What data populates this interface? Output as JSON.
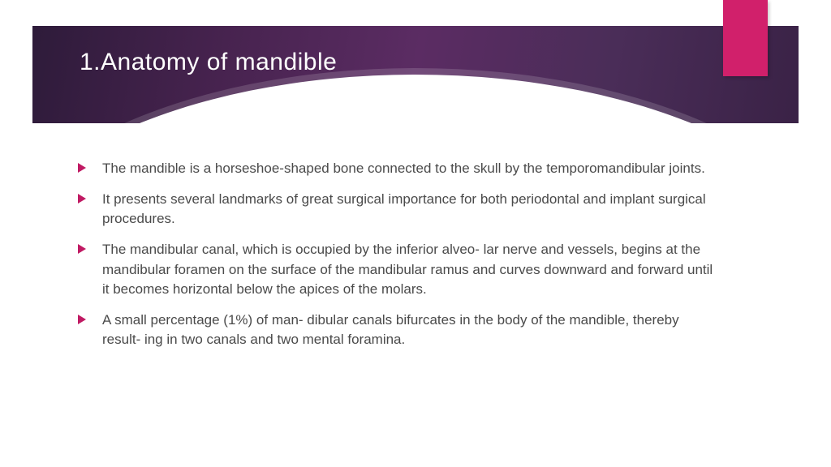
{
  "slide": {
    "title": "1.Anatomy of mandible",
    "title_color": "#ffffff",
    "title_fontsize": 30,
    "header_gradient_colors": [
      "#2e1b3a",
      "#47234f",
      "#5b2c63",
      "#4a2d58",
      "#3a2246"
    ],
    "accent_tab_color": "#d1206b",
    "bullet_arrow_color": "#c01a63",
    "body_text_color": "#4a4a4a",
    "body_fontsize": 17,
    "background_color": "#ffffff",
    "bullets": [
      "The mandible is a horseshoe-shaped bone connected to the skull by the temporomandibular joints.",
      "It presents several landmarks of great surgical importance for both periodontal and implant surgical procedures.",
      "The mandibular canal, which is occupied by the inferior alveo- lar nerve and vessels, begins at the mandibular foramen on the surface of the mandibular ramus and curves downward and forward until it becomes horizontal below the apices of the molars.",
      " A small percentage (1%) of man- dibular canals bifurcates in the body of the mandible, thereby result- ing in two canals and two mental foramina."
    ]
  }
}
